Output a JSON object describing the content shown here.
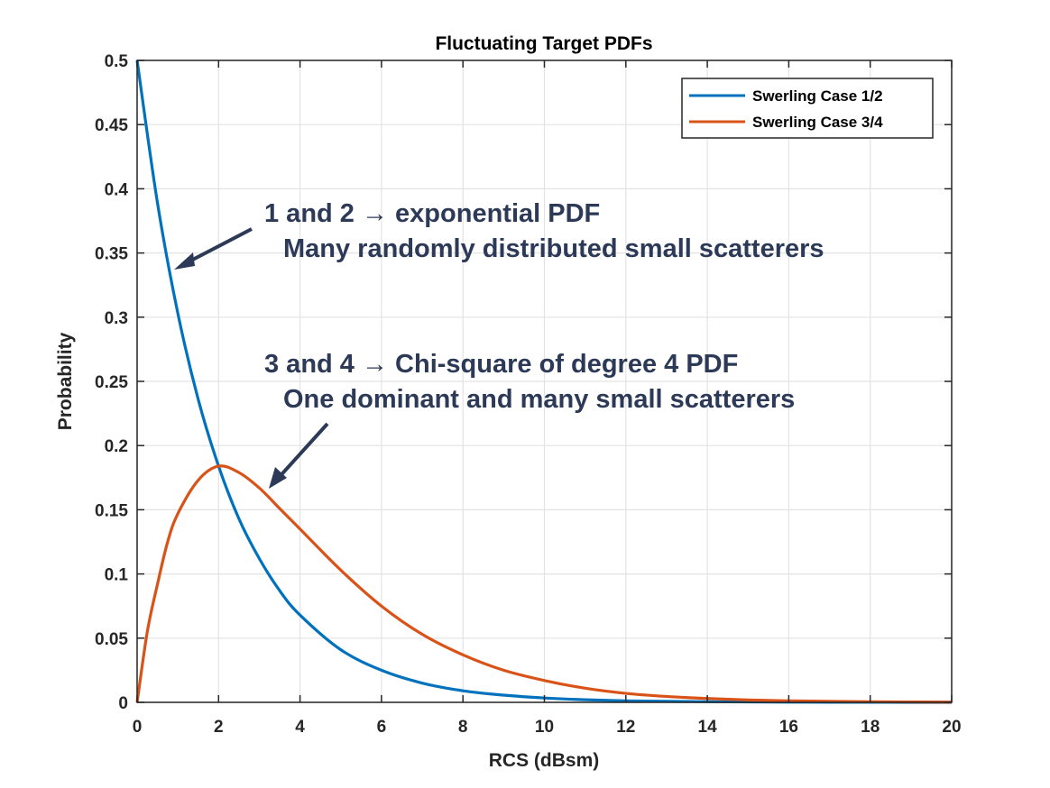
{
  "chart_data": {
    "type": "line",
    "title": "Fluctuating Target PDFs",
    "xlabel": "RCS (dBsm)",
    "ylabel": "Probability",
    "xlim": [
      0,
      20
    ],
    "ylim": [
      0,
      0.5
    ],
    "xticks": [
      0,
      2,
      4,
      6,
      8,
      10,
      12,
      14,
      16,
      18,
      20
    ],
    "yticks": [
      0,
      0.05,
      0.1,
      0.15,
      0.2,
      0.25,
      0.3,
      0.35,
      0.4,
      0.45,
      0.5
    ],
    "ytick_labels": [
      "0",
      "0.05",
      "0.1",
      "0.15",
      "0.2",
      "0.25",
      "0.3",
      "0.35",
      "0.4",
      "0.45",
      "0.5"
    ],
    "grid": true,
    "legend_position": "top-right",
    "series": [
      {
        "name": "Swerling Case 1/2",
        "color": "#0072bd",
        "x": [
          0,
          0.5,
          1,
          1.5,
          2,
          2.5,
          3,
          3.5,
          4,
          5,
          6,
          7,
          8,
          9,
          10,
          11,
          12,
          13,
          14,
          15,
          16,
          17,
          18,
          19,
          20
        ],
        "y": [
          0.5,
          0.389,
          0.303,
          0.236,
          0.184,
          0.143,
          0.112,
          0.087,
          0.068,
          0.041,
          0.025,
          0.015,
          0.009,
          0.0056,
          0.0034,
          0.002,
          0.0012,
          0.0008,
          0.0005,
          0.0003,
          0.0002,
          0.0001,
          0.0001,
          0,
          0
        ]
      },
      {
        "name": "Swerling Case 3/4",
        "color": "#d95319",
        "x": [
          0,
          0.25,
          0.5,
          0.75,
          1,
          1.5,
          2,
          2.5,
          3,
          3.5,
          4,
          5,
          6,
          7,
          8,
          9,
          10,
          11,
          12,
          13,
          14,
          15,
          16,
          17,
          18,
          19,
          20
        ],
        "y": [
          0,
          0.055,
          0.092,
          0.125,
          0.147,
          0.173,
          0.184,
          0.179,
          0.167,
          0.151,
          0.135,
          0.103,
          0.075,
          0.053,
          0.037,
          0.025,
          0.017,
          0.011,
          0.007,
          0.0046,
          0.003,
          0.0019,
          0.0012,
          0.0008,
          0.0005,
          0.0003,
          0.0002
        ]
      }
    ],
    "annotations": [
      {
        "line1": "1 and 2 → exponential PDF",
        "line2": "Many randomly distributed small scatterers"
      },
      {
        "line1": "3 and 4 → Chi-square of degree 4 PDF",
        "line2": "One dominant and many small scatterers"
      }
    ],
    "annotation_color": "#2c3a57"
  }
}
